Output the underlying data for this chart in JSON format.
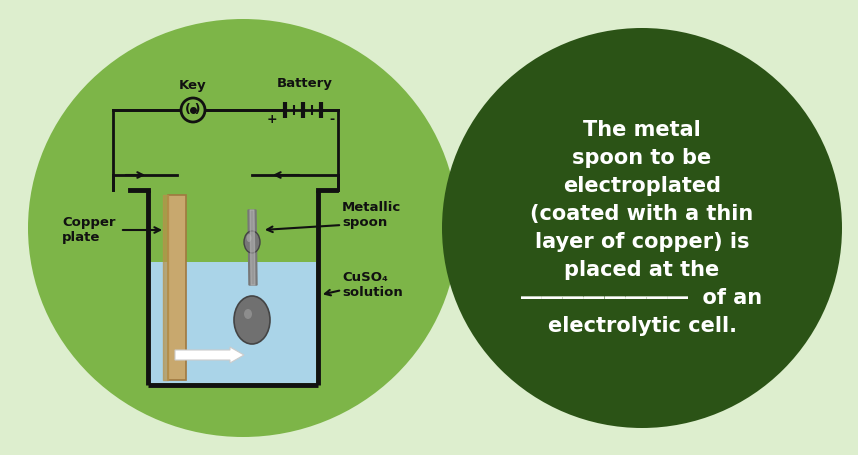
{
  "bg_color": "#ddeece",
  "left_ellipse_color": "#7db548",
  "right_ellipse_color": "#2b5316",
  "solution_color": "#aad4e8",
  "copper_color": "#c8a86e",
  "copper_edge": "#a07840",
  "spoon_color": "#888888",
  "spoon_highlight": "#bbbbbb",
  "wire_color": "#111111",
  "text_left_color": "#111111",
  "text_right_color": "#ffffff",
  "label_key": "Key",
  "label_battery": "Battery",
  "label_plus": "+",
  "label_minus": "-",
  "label_copper": "Copper\nplate",
  "label_metallic": "Metallic\nspoon",
  "label_cuso4": "CuSO₄\nsolution",
  "right_text": "The metal\nspoon to be\nelectroplated\n(coated with a thin\nlayer of copper) is\nplaced at the\n――――――――  of an\nelectrolytic cell.",
  "figsize": [
    8.58,
    4.55
  ],
  "dpi": 100
}
